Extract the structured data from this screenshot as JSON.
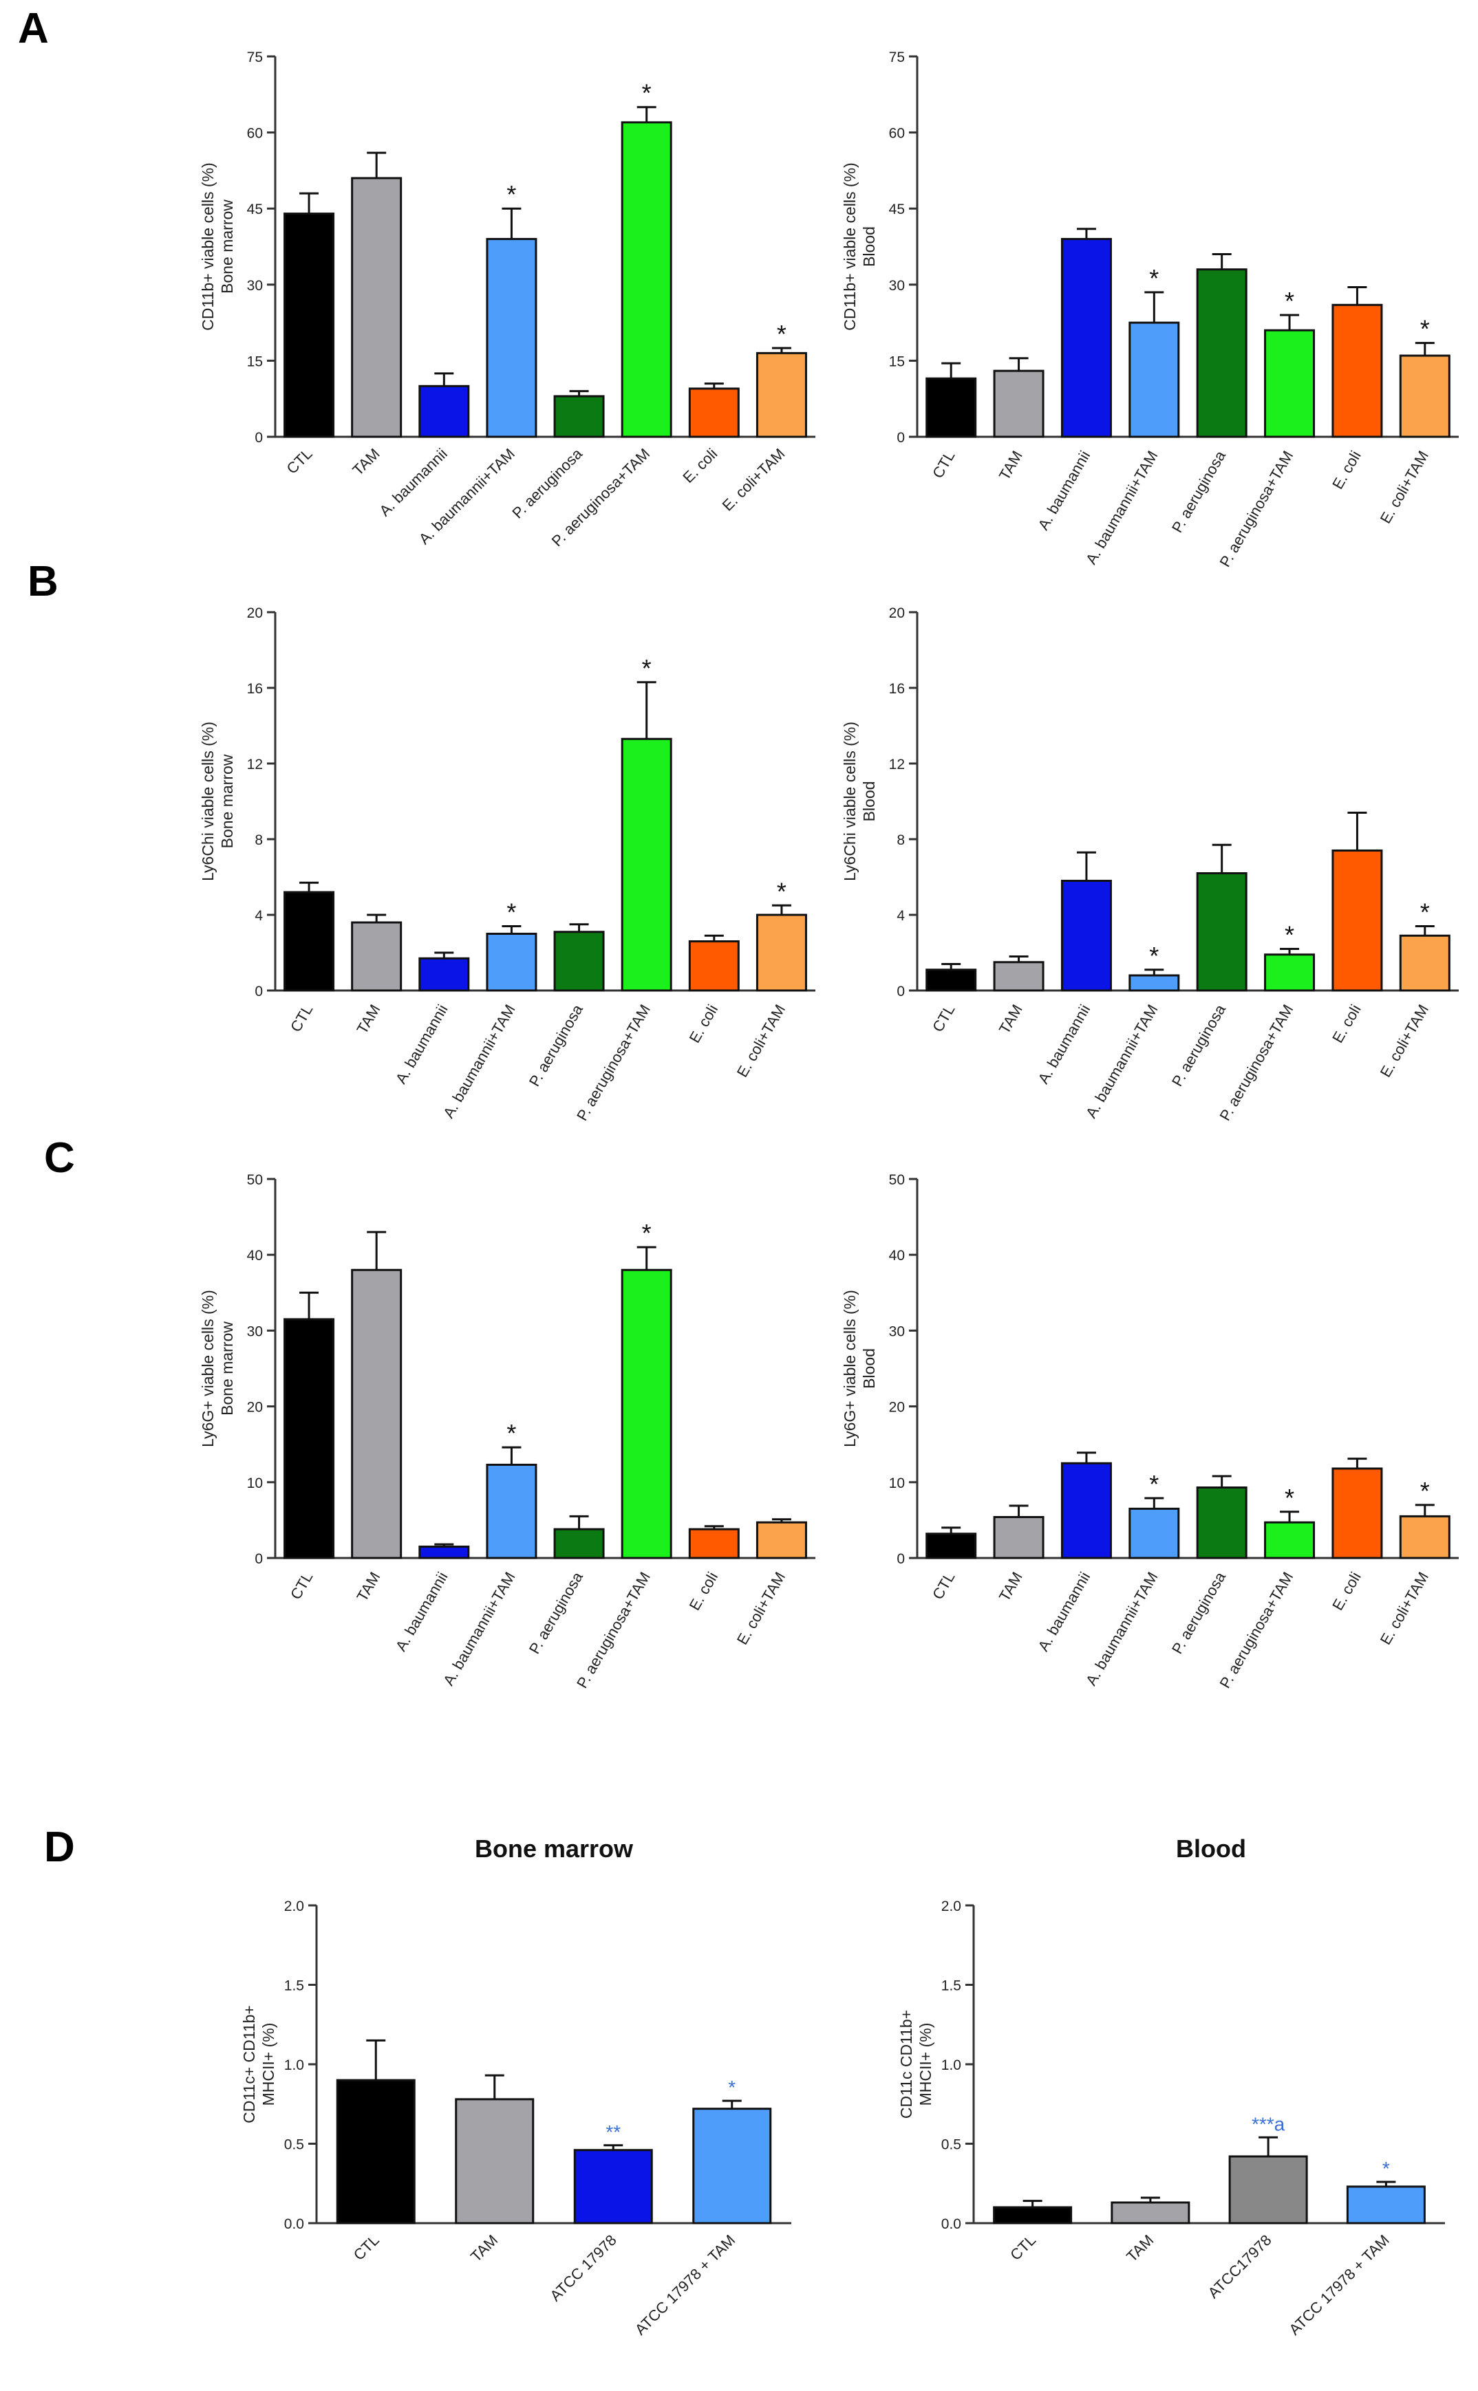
{
  "panel_letters": [
    "A",
    "B",
    "C",
    "D"
  ],
  "colors": {
    "CTL": "#000000",
    "TAM": "#a3a3a8",
    "A. baumannii": "#0a14e6",
    "A. baumannii+TAM": "#4f9dfb",
    "P. aeruginosa": "#0c7a12",
    "P. aeruginosa+TAM": "#1cf01c",
    "E. coli": "#ff5a00",
    "E. coli+TAM": "#fba34a",
    "ATCC 17978": "#0a14e6",
    "ATCC 17978 + TAM": "#4f9dfb"
  },
  "chart_data": [
    {
      "id": "A-left",
      "panel": "A",
      "type": "bar",
      "ylabel": [
        "CD11b+ viable cells (%)",
        "Bone marrow"
      ],
      "ylim": [
        0,
        75
      ],
      "yticks": [
        0,
        15,
        30,
        45,
        60,
        75
      ],
      "categories": [
        "CTL",
        "TAM",
        "A. baumannii",
        "A. baumannii+TAM",
        "P. aeruginosa",
        "P. aeruginosa+TAM",
        "E. coli",
        "E. coli+TAM"
      ],
      "values": [
        44,
        51,
        10,
        39,
        8,
        62,
        9.5,
        16.5
      ],
      "errors": [
        4,
        5,
        2.5,
        6,
        1,
        3,
        1,
        1
      ],
      "annotations": [
        "",
        "",
        "",
        "*",
        "",
        "*",
        "",
        "*"
      ]
    },
    {
      "id": "A-right",
      "panel": "A",
      "type": "bar",
      "ylabel": [
        "CD11b+ viable cells (%)",
        "Blood"
      ],
      "ylim": [
        0,
        75
      ],
      "yticks": [
        0,
        15,
        30,
        45,
        60,
        75
      ],
      "categories": [
        "CTL",
        "TAM",
        "A. baumannii",
        "A. baumannii+TAM",
        "P. aeruginosa",
        "P. aeruginosa+TAM",
        "E. coli",
        "E. coli+TAM"
      ],
      "values": [
        11.5,
        13,
        39,
        22.5,
        33,
        21,
        26,
        16
      ],
      "errors": [
        3,
        2.5,
        2,
        6,
        3,
        3,
        3.5,
        2.5
      ],
      "annotations": [
        "",
        "",
        "",
        "*",
        "",
        "*",
        "",
        "*"
      ]
    },
    {
      "id": "B-left",
      "panel": "B",
      "type": "bar",
      "ylabel": [
        "Ly6Chi viable cells (%)",
        "Bone marrow"
      ],
      "ylim": [
        0,
        20
      ],
      "yticks": [
        0,
        4,
        8,
        12,
        16,
        20
      ],
      "categories": [
        "CTL",
        "TAM",
        "A. baumannii",
        "A. baumannii+TAM",
        "P. aeruginosa",
        "P. aeruginosa+TAM",
        "E. coli",
        "E. coli+TAM"
      ],
      "values": [
        5.2,
        3.6,
        1.7,
        3,
        3.1,
        13.3,
        2.6,
        4
      ],
      "errors": [
        0.5,
        0.4,
        0.3,
        0.4,
        0.4,
        3,
        0.3,
        0.5
      ],
      "annotations": [
        "",
        "",
        "",
        "*",
        "",
        "*",
        "",
        "*"
      ]
    },
    {
      "id": "B-right",
      "panel": "B",
      "type": "bar",
      "ylabel": [
        "Ly6Chi viable cells (%)",
        "Blood"
      ],
      "ylim": [
        0,
        20
      ],
      "yticks": [
        0,
        4,
        8,
        12,
        16,
        20
      ],
      "categories": [
        "CTL",
        "TAM",
        "A. baumannii",
        "A. baumannii+TAM",
        "P. aeruginosa",
        "P. aeruginosa+TAM",
        "E. coli",
        "E. coli+TAM"
      ],
      "values": [
        1.1,
        1.5,
        5.8,
        0.8,
        6.2,
        1.9,
        7.4,
        2.9
      ],
      "errors": [
        0.3,
        0.3,
        1.5,
        0.3,
        1.5,
        0.3,
        2,
        0.5
      ],
      "annotations": [
        "",
        "",
        "",
        "*",
        "",
        "*",
        "",
        "*"
      ]
    },
    {
      "id": "C-left",
      "panel": "C",
      "type": "bar",
      "ylabel": [
        "Ly6G+ viable cells (%)",
        "Bone marrow"
      ],
      "ylim": [
        0,
        50
      ],
      "yticks": [
        0,
        10,
        20,
        30,
        40,
        50
      ],
      "categories": [
        "CTL",
        "TAM",
        "A. baumannii",
        "A. baumannii+TAM",
        "P. aeruginosa",
        "P. aeruginosa+TAM",
        "E. coli",
        "E. coli+TAM"
      ],
      "values": [
        31.5,
        38,
        1.5,
        12.3,
        3.8,
        38,
        3.8,
        4.7
      ],
      "errors": [
        3.5,
        5,
        0.3,
        2.3,
        1.7,
        3,
        0.4,
        0.4
      ],
      "annotations": [
        "",
        "",
        "",
        "*",
        "",
        "*",
        "",
        ""
      ]
    },
    {
      "id": "C-right",
      "panel": "C",
      "type": "bar",
      "ylabel": [
        "Ly6G+ viable cells (%)",
        "Blood"
      ],
      "ylim": [
        0,
        50
      ],
      "yticks": [
        0,
        10,
        20,
        30,
        40,
        50
      ],
      "categories": [
        "CTL",
        "TAM",
        "A. baumannii",
        "A. baumannii+TAM",
        "P. aeruginosa",
        "P. aeruginosa+TAM",
        "E. coli",
        "E. coli+TAM"
      ],
      "values": [
        3.2,
        5.4,
        12.5,
        6.5,
        9.3,
        4.7,
        11.8,
        5.5
      ],
      "errors": [
        0.8,
        1.5,
        1.4,
        1.4,
        1.5,
        1.4,
        1.3,
        1.5
      ],
      "annotations": [
        "",
        "",
        "",
        "*",
        "",
        "*",
        "",
        "*"
      ]
    },
    {
      "id": "D-left",
      "panel": "D",
      "type": "bar",
      "title": "Bone marrow",
      "ylabel": [
        "CD11c+ CD11b+",
        "MHCII+ (%)"
      ],
      "ylim": [
        0,
        2.0
      ],
      "yticks": [
        "0.0",
        "0.5",
        "1.0",
        "1.5",
        "2.0"
      ],
      "categories": [
        "CTL",
        "TAM",
        "ATCC 17978",
        "ATCC 17978 + TAM"
      ],
      "values": [
        0.9,
        0.78,
        0.46,
        0.72
      ],
      "errors": [
        0.25,
        0.15,
        0.03,
        0.05
      ],
      "annotations": [
        "",
        "",
        "**",
        "*"
      ]
    },
    {
      "id": "D-right",
      "panel": "D",
      "type": "bar",
      "title": "Blood",
      "ylabel": [
        "CD11c CD11b+",
        "MHCII+ (%)"
      ],
      "ylim": [
        0,
        2.0
      ],
      "yticks": [
        "0.0",
        "0.5",
        "1.0",
        "1.5",
        "2.0"
      ],
      "categories": [
        "CTL",
        "TAM",
        "ATCC17978",
        "ATCC 17978 + TAM"
      ],
      "values": [
        0.1,
        0.13,
        0.42,
        0.23
      ],
      "errors": [
        0.04,
        0.03,
        0.12,
        0.03
      ],
      "annotations": [
        "",
        "",
        "***a",
        "*"
      ]
    }
  ]
}
